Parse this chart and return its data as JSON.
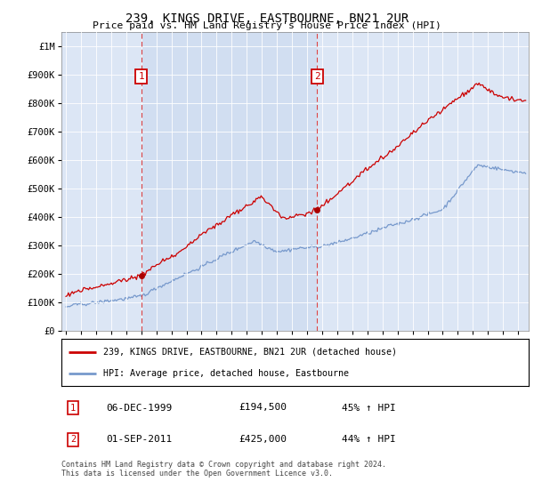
{
  "title": "239, KINGS DRIVE, EASTBOURNE, BN21 2UR",
  "subtitle": "Price paid vs. HM Land Registry's House Price Index (HPI)",
  "background_color": "#dce6f5",
  "plot_bg_color": "#dce6f5",
  "ylim": [
    0,
    1050000
  ],
  "yticks": [
    0,
    100000,
    200000,
    300000,
    400000,
    500000,
    600000,
    700000,
    800000,
    900000,
    1000000
  ],
  "ytick_labels": [
    "£0",
    "£100K",
    "£200K",
    "£300K",
    "£400K",
    "£500K",
    "£600K",
    "£700K",
    "£800K",
    "£900K",
    "£1M"
  ],
  "red_line_color": "#cc0000",
  "blue_line_color": "#7799cc",
  "marker_color": "#aa0000",
  "annotation_box_color": "#cc0000",
  "vline_color": "#dd4444",
  "purchase1_x": 2000.0,
  "purchase1_y": 194500,
  "purchase2_x": 2011.67,
  "purchase2_y": 425000,
  "legend_entry1": "239, KINGS DRIVE, EASTBOURNE, BN21 2UR (detached house)",
  "legend_entry2": "HPI: Average price, detached house, Eastbourne",
  "note1_num": "1",
  "note1_date": "06-DEC-1999",
  "note1_price": "£194,500",
  "note1_hpi": "45% ↑ HPI",
  "note2_num": "2",
  "note2_date": "01-SEP-2011",
  "note2_price": "£425,000",
  "note2_hpi": "44% ↑ HPI",
  "footer": "Contains HM Land Registry data © Crown copyright and database right 2024.\nThis data is licensed under the Open Government Licence v3.0.",
  "xlim_left": 1994.7,
  "xlim_right": 2025.7
}
